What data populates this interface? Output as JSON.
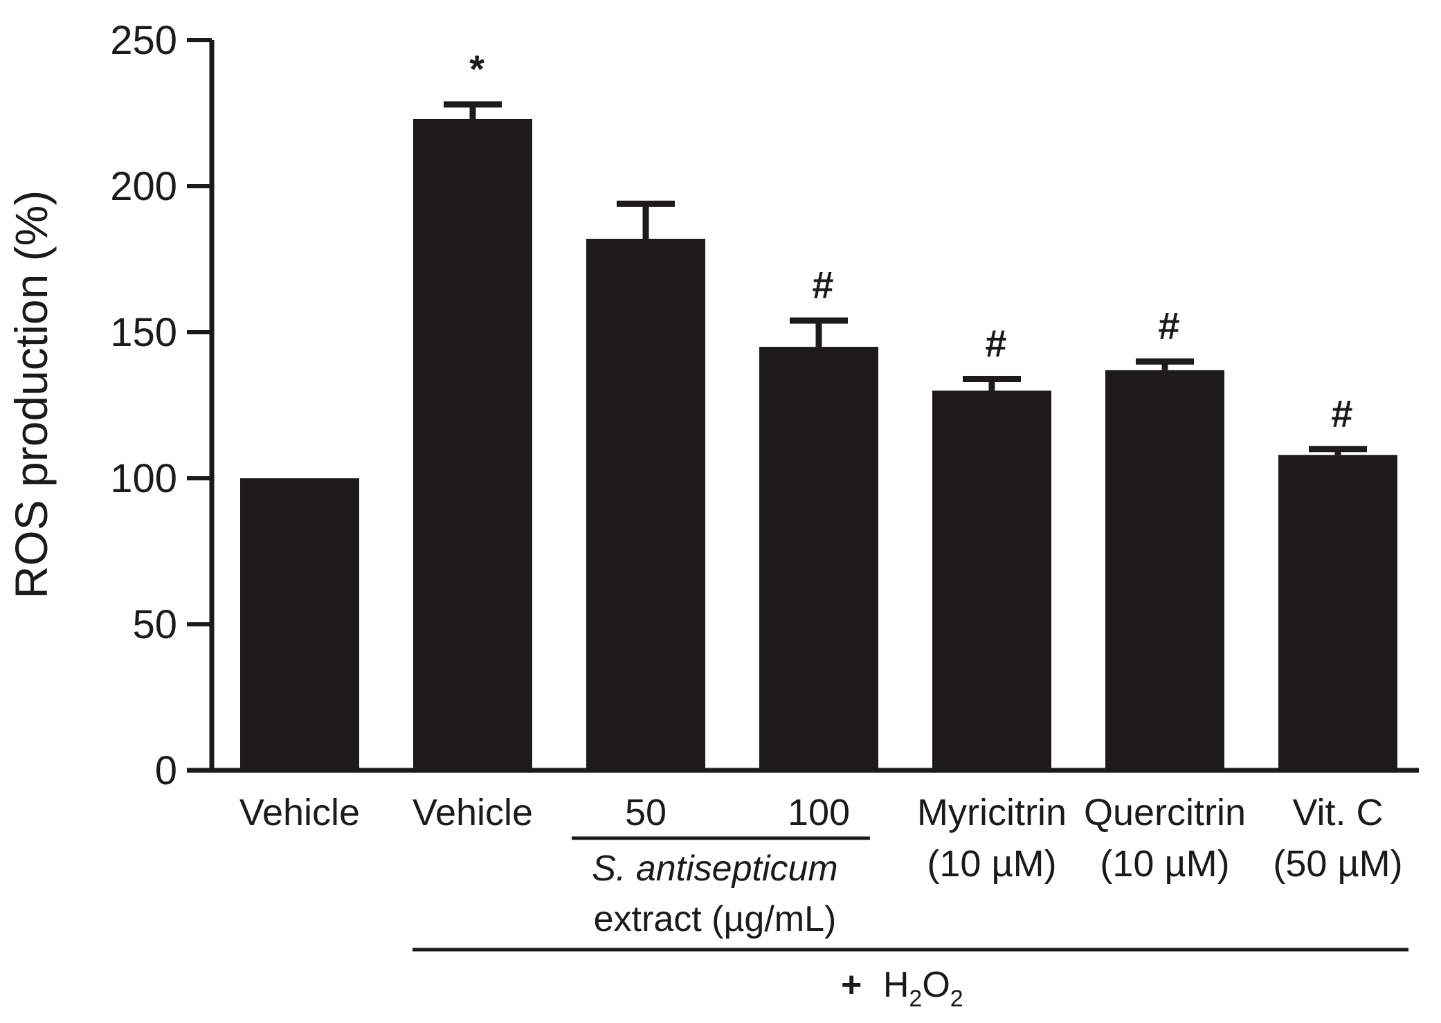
{
  "chart_data": {
    "type": "bar",
    "ylabel": "ROS production (%)",
    "ylim": [
      0,
      250
    ],
    "yticks": [
      0,
      50,
      100,
      150,
      200,
      250
    ],
    "grid": false,
    "bar_color": "#1c1a1b",
    "categories": [
      {
        "label": "Vehicle",
        "sublabel": ""
      },
      {
        "label": "Vehicle",
        "sublabel": ""
      },
      {
        "label": "50",
        "sublabel": ""
      },
      {
        "label": "100",
        "sublabel": ""
      },
      {
        "label": "Myricitrin",
        "sublabel": "(10 µM)"
      },
      {
        "label": "Quercitrin",
        "sublabel": "(10 µM)"
      },
      {
        "label": "Vit. C",
        "sublabel": "(50 µM)"
      }
    ],
    "values": [
      100,
      223,
      182,
      145,
      130,
      137,
      108
    ],
    "errors": [
      0,
      5,
      12,
      9,
      4,
      3,
      2
    ],
    "significance": [
      "",
      "*",
      "",
      "#",
      "#",
      "#",
      "#"
    ],
    "extract_group": {
      "line1": "S. antisepticum",
      "line2": "extract (µg/mL)"
    },
    "treatment_group": {
      "plus": "+",
      "h": "H",
      "sub1": "2",
      "o": "O",
      "sub2": "2"
    }
  }
}
